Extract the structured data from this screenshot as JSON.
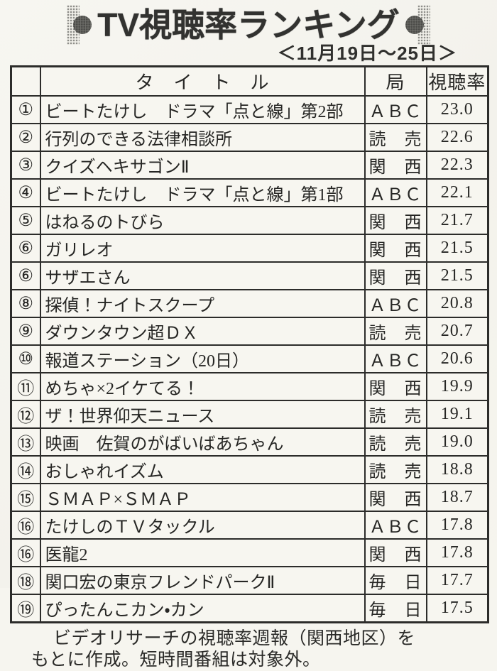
{
  "header": {
    "title": "TV視聴率ランキング",
    "date_range": "＜11月19日～25日＞"
  },
  "table": {
    "columns": {
      "rank": "",
      "title": "タ　イ　ト　ル",
      "station": "局",
      "rating": "視聴率"
    },
    "rows": [
      {
        "rank": "①",
        "title": "ビートたけし　ドラマ「点と線」第2部",
        "station": "ＡＢＣ",
        "rating": "23.0"
      },
      {
        "rank": "②",
        "title": "行列のできる法律相談所",
        "station": "読　売",
        "rating": "22.6"
      },
      {
        "rank": "③",
        "title": "クイズヘキサゴンⅡ",
        "station": "関　西",
        "rating": "22.3"
      },
      {
        "rank": "④",
        "title": "ビートたけし　ドラマ「点と線」第1部",
        "station": "ＡＢＣ",
        "rating": "22.1"
      },
      {
        "rank": "⑤",
        "title": "はねるのトびら",
        "station": "関　西",
        "rating": "21.7"
      },
      {
        "rank": "⑥",
        "title": "ガリレオ",
        "station": "関　西",
        "rating": "21.5"
      },
      {
        "rank": "⑥",
        "title": "サザエさん",
        "station": "関　西",
        "rating": "21.5"
      },
      {
        "rank": "⑧",
        "title": "探偵！ナイトスクープ",
        "station": "ＡＢＣ",
        "rating": "20.8"
      },
      {
        "rank": "⑨",
        "title": "ダウンタウン超ＤＸ",
        "station": "読　売",
        "rating": "20.7"
      },
      {
        "rank": "⑩",
        "title": "報道ステーション（20日）",
        "station": "ＡＢＣ",
        "rating": "20.6"
      },
      {
        "rank": "⑪",
        "title": "めちゃ×2イケてる！",
        "station": "関　西",
        "rating": "19.9"
      },
      {
        "rank": "⑫",
        "title": "ザ！世界仰天ニュース",
        "station": "読　売",
        "rating": "19.1"
      },
      {
        "rank": "⑬",
        "title": "映画　佐賀のがばいばあちゃん",
        "station": "読　売",
        "rating": "19.0"
      },
      {
        "rank": "⑭",
        "title": "おしゃれイズム",
        "station": "読　売",
        "rating": "18.8"
      },
      {
        "rank": "⑮",
        "title": "ＳＭＡＰ×ＳＭＡＰ",
        "station": "関　西",
        "rating": "18.7"
      },
      {
        "rank": "⑯",
        "title": "たけしのＴＶタックル",
        "station": "ＡＢＣ",
        "rating": "17.8"
      },
      {
        "rank": "⑯",
        "title": "医龍2",
        "station": "関　西",
        "rating": "17.8"
      },
      {
        "rank": "⑱",
        "title": "関口宏の東京フレンドパークⅡ",
        "station": "毎　日",
        "rating": "17.7"
      },
      {
        "rank": "⑲",
        "title": "ぴったんこカン・カン",
        "station": "毎　日",
        "rating": "17.5"
      }
    ]
  },
  "footer": {
    "line1": "ビデオリサーチの視聴率週報（関西地区）を",
    "line2": "もとに作成。短時間番組は対象外。"
  },
  "colors": {
    "paper": "#f6f5ef",
    "ink": "#2b2b2a",
    "table_border": "#2c2c2a",
    "halftone_gray": "#8e8e8a",
    "circle_gray": "#5c5c58"
  }
}
